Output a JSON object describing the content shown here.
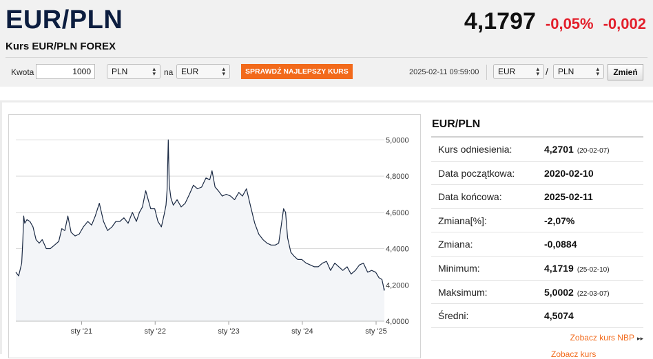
{
  "header": {
    "pair": "EUR/PLN",
    "subtitle": "Kurs EUR/PLN FOREX",
    "rate": "4,1797",
    "change_pct": "-0,05%",
    "change_abs": "-0,002"
  },
  "toolbar": {
    "amount_label": "Kwota",
    "amount_value": "1000",
    "from_currency": "PLN",
    "na_label": "na",
    "to_currency": "EUR",
    "best_rate_button": "SPRAWDŹ NAJLEPSZY KURS",
    "timestamp": "2025-02-11 09:59:00",
    "pair_base": "EUR",
    "slash": "/",
    "pair_quote": "PLN",
    "change_button": "Zmień"
  },
  "stats": {
    "title": "EUR/PLN",
    "rows": [
      {
        "label": "Kurs odniesienia:",
        "value": "4,2701",
        "note": "(20-02-07)"
      },
      {
        "label": "Data początkowa:",
        "value": "2020-02-10",
        "note": ""
      },
      {
        "label": "Data końcowa:",
        "value": "2025-02-11",
        "note": ""
      },
      {
        "label": "Zmiana[%]:",
        "value": "-2,07%",
        "note": ""
      },
      {
        "label": "Zmiana:",
        "value": "-0,0884",
        "note": ""
      },
      {
        "label": "Minimum:",
        "value": "4,1719",
        "note": "(25-02-10)"
      },
      {
        "label": "Maksimum:",
        "value": "5,0002",
        "note": "(22-03-07)"
      },
      {
        "label": "Średni:",
        "value": "4,5074",
        "note": ""
      }
    ],
    "nbp_link": "Zobacz kurs NBP",
    "nbp_arrows": "▸▸",
    "cut_link": "Zobacz kurs"
  },
  "colors": {
    "negative": "#e3202c",
    "accent_orange": "#f26a1b",
    "line": "#1b2a44",
    "fill": "#f3f5f8"
  },
  "chart_data": {
    "type": "line",
    "title": "",
    "xlabel": "",
    "ylabel": "",
    "ylim": [
      4.0,
      5.1
    ],
    "yticks": [
      {
        "value": 4.0,
        "label": "4,0000"
      },
      {
        "value": 4.2,
        "label": "4,2000"
      },
      {
        "value": 4.4,
        "label": "4,4000"
      },
      {
        "value": 4.6,
        "label": "4,6000"
      },
      {
        "value": 4.8,
        "label": "4,8000"
      },
      {
        "value": 5.0,
        "label": "5,0000"
      }
    ],
    "xlim": [
      "2020-02-10",
      "2025-02-11"
    ],
    "xticks": [
      {
        "date": "2021-01-01",
        "label": "sty '21"
      },
      {
        "date": "2022-01-01",
        "label": "sty '22"
      },
      {
        "date": "2023-01-01",
        "label": "sty '23"
      },
      {
        "date": "2024-01-01",
        "label": "sty '24"
      },
      {
        "date": "2025-01-01",
        "label": "sty '25"
      }
    ],
    "grid": true,
    "series": [
      {
        "x": [
          "2020-02-10",
          "2020-02-24",
          "2020-03-10",
          "2020-03-16",
          "2020-03-20",
          "2020-03-25",
          "2020-04-05",
          "2020-04-20",
          "2020-05-05",
          "2020-05-20",
          "2020-06-05",
          "2020-06-20",
          "2020-07-10",
          "2020-07-30",
          "2020-08-20",
          "2020-09-10",
          "2020-09-25",
          "2020-10-10",
          "2020-10-25",
          "2020-11-10",
          "2020-11-30",
          "2020-12-20",
          "2021-01-10",
          "2021-02-01",
          "2021-02-20",
          "2021-03-10",
          "2021-03-30",
          "2021-04-20",
          "2021-05-10",
          "2021-06-01",
          "2021-06-20",
          "2021-07-10",
          "2021-07-30",
          "2021-08-20",
          "2021-09-10",
          "2021-09-30",
          "2021-10-15",
          "2021-10-30",
          "2021-11-15",
          "2021-11-25",
          "2021-12-10",
          "2021-12-30",
          "2022-01-15",
          "2022-02-01",
          "2022-02-15",
          "2022-02-24",
          "2022-03-01",
          "2022-03-07",
          "2022-03-12",
          "2022-03-20",
          "2022-04-01",
          "2022-04-20",
          "2022-05-10",
          "2022-05-30",
          "2022-06-20",
          "2022-07-10",
          "2022-07-30",
          "2022-08-20",
          "2022-09-10",
          "2022-09-29",
          "2022-10-10",
          "2022-10-25",
          "2022-11-10",
          "2022-11-30",
          "2022-12-20",
          "2023-01-10",
          "2023-01-30",
          "2023-02-20",
          "2023-03-10",
          "2023-03-30",
          "2023-04-20",
          "2023-05-10",
          "2023-05-30",
          "2023-06-20",
          "2023-07-10",
          "2023-07-30",
          "2023-08-20",
          "2023-09-06",
          "2023-09-15",
          "2023-09-30",
          "2023-10-10",
          "2023-10-20",
          "2023-11-05",
          "2023-11-20",
          "2023-12-10",
          "2023-12-30",
          "2024-01-20",
          "2024-02-10",
          "2024-03-01",
          "2024-03-20",
          "2024-04-10",
          "2024-04-30",
          "2024-05-20",
          "2024-06-10",
          "2024-06-30",
          "2024-07-20",
          "2024-08-10",
          "2024-08-30",
          "2024-09-20",
          "2024-10-10",
          "2024-10-30",
          "2024-11-20",
          "2024-12-10",
          "2024-12-30",
          "2025-01-15",
          "2025-01-30",
          "2025-02-05",
          "2025-02-10",
          "2025-02-11"
        ],
        "values": [
          4.27,
          4.25,
          4.32,
          4.45,
          4.58,
          4.54,
          4.56,
          4.55,
          4.52,
          4.45,
          4.43,
          4.45,
          4.4,
          4.4,
          4.42,
          4.44,
          4.51,
          4.5,
          4.58,
          4.49,
          4.47,
          4.48,
          4.52,
          4.55,
          4.53,
          4.58,
          4.65,
          4.55,
          4.5,
          4.52,
          4.55,
          4.55,
          4.57,
          4.54,
          4.6,
          4.55,
          4.6,
          4.63,
          4.72,
          4.68,
          4.62,
          4.62,
          4.55,
          4.52,
          4.59,
          4.64,
          4.72,
          5.0,
          4.75,
          4.68,
          4.64,
          4.67,
          4.63,
          4.65,
          4.7,
          4.75,
          4.73,
          4.74,
          4.79,
          4.78,
          4.83,
          4.74,
          4.72,
          4.69,
          4.7,
          4.69,
          4.67,
          4.71,
          4.69,
          4.73,
          4.63,
          4.54,
          4.48,
          4.45,
          4.43,
          4.42,
          4.42,
          4.43,
          4.5,
          4.62,
          4.6,
          4.46,
          4.38,
          4.36,
          4.34,
          4.34,
          4.32,
          4.31,
          4.3,
          4.3,
          4.32,
          4.33,
          4.28,
          4.32,
          4.3,
          4.28,
          4.3,
          4.26,
          4.28,
          4.31,
          4.32,
          4.27,
          4.28,
          4.27,
          4.24,
          4.23,
          4.2,
          4.17,
          4.18
        ]
      }
    ]
  }
}
